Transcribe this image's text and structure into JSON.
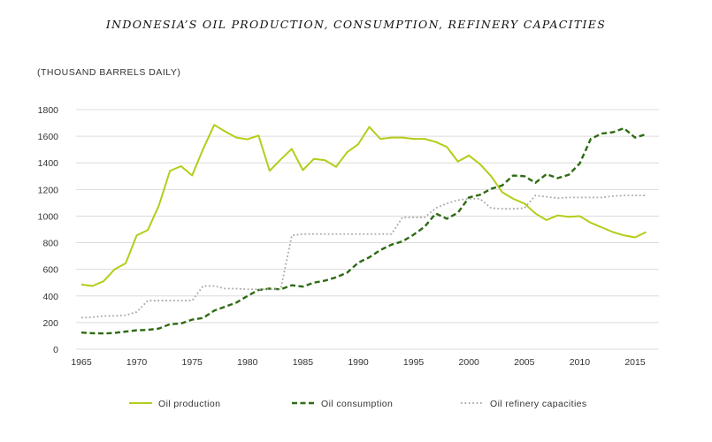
{
  "chart_data": {
    "type": "line",
    "title": "INDONESIA’S OIL PRODUCTION, CONSUMPTION, REFINERY CAPACITIES",
    "ylabel": "(THOUSAND BARRELS DAILY)",
    "xlabel": "",
    "xlim": [
      1965,
      2016
    ],
    "ylim": [
      0,
      1800
    ],
    "yticks": [
      0,
      200,
      400,
      600,
      800,
      1000,
      1200,
      1400,
      1600,
      1800
    ],
    "xticks": [
      1965,
      1970,
      1975,
      1980,
      1985,
      1990,
      1995,
      2000,
      2005,
      2010,
      2015
    ],
    "grid": true,
    "legend_position": "bottom",
    "x": [
      1965,
      1966,
      1967,
      1968,
      1969,
      1970,
      1971,
      1972,
      1973,
      1974,
      1975,
      1976,
      1977,
      1978,
      1979,
      1980,
      1981,
      1982,
      1983,
      1984,
      1985,
      1986,
      1987,
      1988,
      1989,
      1990,
      1991,
      1992,
      1993,
      1994,
      1995,
      1996,
      1997,
      1998,
      1999,
      2000,
      2001,
      2002,
      2003,
      2004,
      2005,
      2006,
      2007,
      2008,
      2009,
      2010,
      2011,
      2012,
      2013,
      2014,
      2015,
      2016
    ],
    "series": [
      {
        "name": "Oil production",
        "color": "#b5cc18",
        "style": "solid",
        "values": [
          486,
          475,
          510,
          600,
          645,
          855,
          895,
          1080,
          1340,
          1375,
          1305,
          1505,
          1685,
          1635,
          1590,
          1577,
          1605,
          1340,
          1425,
          1505,
          1345,
          1430,
          1420,
          1370,
          1480,
          1540,
          1670,
          1580,
          1590,
          1590,
          1580,
          1580,
          1557,
          1520,
          1410,
          1455,
          1390,
          1300,
          1180,
          1130,
          1095,
          1020,
          970,
          1005,
          995,
          1000,
          950,
          915,
          880,
          855,
          840,
          880
        ]
      },
      {
        "name": "Oil consumption",
        "color": "#2e6b12",
        "style": "dashed",
        "values": [
          125,
          120,
          118,
          122,
          132,
          142,
          145,
          155,
          188,
          193,
          222,
          235,
          290,
          320,
          350,
          400,
          445,
          455,
          450,
          480,
          470,
          500,
          515,
          540,
          575,
          650,
          690,
          745,
          785,
          810,
          860,
          920,
          1020,
          980,
          1025,
          1140,
          1160,
          1205,
          1230,
          1305,
          1300,
          1250,
          1315,
          1285,
          1310,
          1395,
          1580,
          1620,
          1630,
          1660,
          1590,
          1615
        ]
      },
      {
        "name": "Oil refinery capacities",
        "color": "#a8a8a8",
        "style": "dotted",
        "values": [
          237,
          240,
          250,
          250,
          255,
          280,
          365,
          365,
          365,
          365,
          365,
          475,
          475,
          455,
          455,
          450,
          450,
          450,
          450,
          855,
          865,
          865,
          865,
          865,
          865,
          865,
          865,
          865,
          865,
          990,
          990,
          990,
          1060,
          1095,
          1120,
          1130,
          1130,
          1060,
          1055,
          1055,
          1060,
          1155,
          1145,
          1135,
          1140,
          1140,
          1140,
          1140,
          1150,
          1155,
          1155,
          1155
        ]
      }
    ]
  }
}
